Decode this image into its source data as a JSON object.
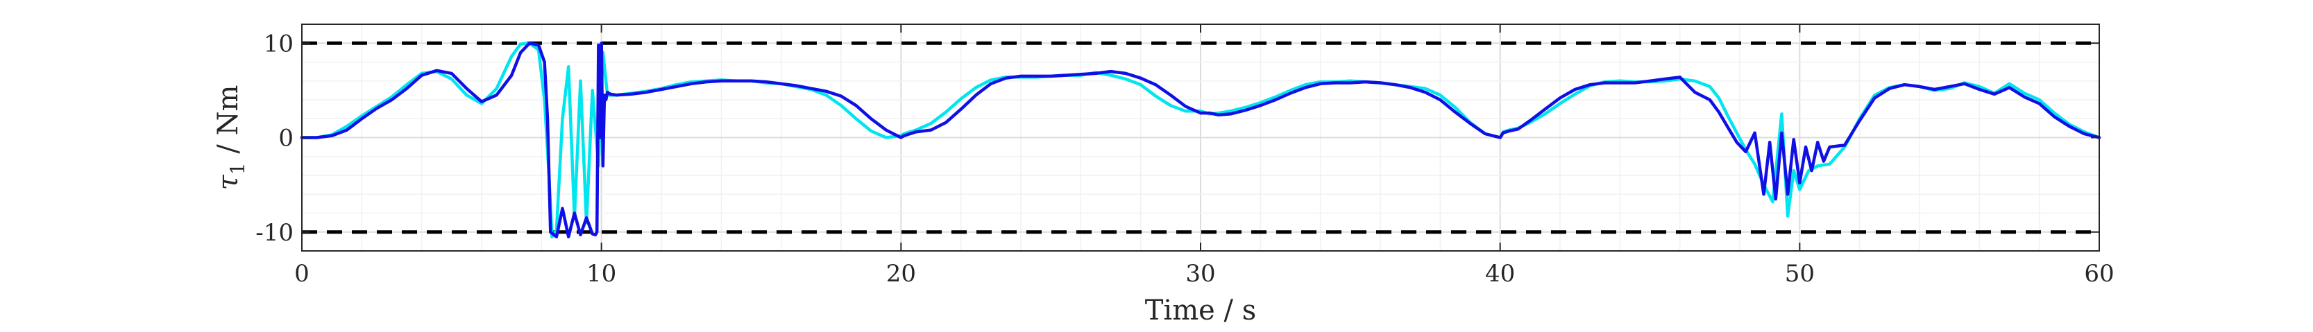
{
  "chart_data": {
    "type": "line",
    "xlabel": "Time / s",
    "ylabel": "τ1 / Nm",
    "ylabel_main": "τ",
    "ylabel_sub": "1",
    "ylabel_unit": " / Nm",
    "xlim": [
      0,
      60
    ],
    "ylim": [
      -12,
      12
    ],
    "xticks": [
      0,
      10,
      20,
      30,
      40,
      50,
      60
    ],
    "yticks": [
      -10,
      0,
      10
    ],
    "grid": true,
    "limits": [
      10,
      -10
    ],
    "colors": {
      "reference": "#00e5ee",
      "actual": "#1010e6",
      "limit": "#000000",
      "grid": "#e6e6e6",
      "axes": "#262626"
    },
    "series": [
      {
        "color": "#00e5ee",
        "x": [
          0,
          0.5,
          1,
          1.5,
          2,
          2.5,
          3,
          3.5,
          4,
          4.5,
          5,
          5.5,
          6,
          6.5,
          7,
          7.3,
          7.6,
          7.9,
          8.1,
          8.25,
          8.35,
          8.5,
          8.7,
          8.9,
          9.1,
          9.3,
          9.5,
          9.7,
          9.9,
          10.05,
          10.2,
          10.5,
          11,
          11.5,
          12,
          12.5,
          13,
          13.5,
          14,
          14.5,
          15,
          15.5,
          16,
          16.5,
          17,
          17.5,
          18,
          18.5,
          19,
          19.5,
          20,
          20.1,
          20.3,
          20.5,
          21,
          21.5,
          22,
          22.5,
          23,
          23.5,
          24,
          24.5,
          25,
          25.5,
          26,
          26.5,
          27,
          27.5,
          28,
          28.5,
          29,
          29.5,
          30,
          30.3,
          30.6,
          31,
          31.5,
          32,
          32.5,
          33,
          33.5,
          34,
          34.5,
          35,
          35.5,
          36,
          36.5,
          37,
          37.5,
          38,
          38.5,
          39,
          39.5,
          40,
          40.1,
          40.3,
          40.6,
          41,
          41.5,
          42,
          42.5,
          43,
          43.5,
          44,
          44.5,
          45,
          45.5,
          46,
          46.5,
          47,
          47.3,
          47.6,
          47.9,
          48.2,
          48.5,
          48.8,
          49.1,
          49.4,
          49.6,
          49.8,
          50,
          50.3,
          50.6,
          51,
          51.5,
          52,
          52.5,
          53,
          53.5,
          54,
          54.5,
          55,
          55.5,
          56,
          56.5,
          57,
          57.5,
          58,
          58.5,
          59,
          59.5,
          60
        ],
        "y": [
          0,
          0,
          0.3,
          1.2,
          2.3,
          3.3,
          4.3,
          5.6,
          6.8,
          7,
          6.2,
          4.5,
          3.6,
          5.2,
          8.6,
          9.9,
          10,
          9.3,
          4,
          -4,
          -10.5,
          -9.8,
          2,
          7.5,
          -8.5,
          6,
          -9,
          5,
          -3,
          9,
          4.5,
          4.5,
          4.7,
          4.9,
          5.2,
          5.6,
          5.9,
          6,
          6.1,
          6,
          6,
          5.8,
          5.7,
          5.4,
          5.1,
          4.5,
          3.4,
          2,
          0.7,
          0,
          0.2,
          0.4,
          0.6,
          0.8,
          1.5,
          2.7,
          4.1,
          5.3,
          6.1,
          6.4,
          6.4,
          6.4,
          6.5,
          6.6,
          6.6,
          6.9,
          6.6,
          6.2,
          5.6,
          4.4,
          3.4,
          2.8,
          2.8,
          2.5,
          2.6,
          2.8,
          3.2,
          3.7,
          4.3,
          5,
          5.6,
          5.9,
          5.9,
          6,
          5.9,
          5.8,
          5.6,
          5.4,
          5.2,
          4.5,
          3.2,
          1.6,
          0.4,
          0,
          0.6,
          0.8,
          1,
          1.6,
          2.5,
          3.6,
          4.6,
          5.5,
          5.9,
          6,
          5.9,
          5.9,
          6,
          6.2,
          6,
          5.4,
          4.2,
          2.3,
          0.5,
          -1.3,
          -2.8,
          -5,
          -6.8,
          2.5,
          -8.3,
          -3.5,
          -5.5,
          -3.5,
          -3,
          -2.8,
          -1,
          2,
          4.5,
          5.3,
          5.6,
          5.4,
          5,
          5.2,
          5.8,
          5.4,
          4.7,
          5.7,
          4.7,
          4,
          2.6,
          1.4,
          0.6,
          0
        ]
      },
      {
        "color": "#1010e6",
        "x": [
          0,
          0.5,
          1,
          1.5,
          2,
          2.5,
          3,
          3.5,
          4,
          4.5,
          5,
          5.5,
          6,
          6.5,
          7,
          7.3,
          7.6,
          7.9,
          8.1,
          8.2,
          8.3,
          8.5,
          8.7,
          8.9,
          9.1,
          9.3,
          9.5,
          9.7,
          9.8,
          9.85,
          9.9,
          9.95,
          10,
          10.05,
          10.1,
          10.15,
          10.2,
          10.3,
          10.5,
          11,
          11.5,
          12,
          12.5,
          13,
          13.5,
          14,
          14.5,
          15,
          15.5,
          16,
          16.5,
          17,
          17.5,
          18,
          18.5,
          19,
          19.5,
          20,
          20.1,
          20.3,
          20.5,
          21,
          21.5,
          22,
          22.5,
          23,
          23.5,
          24,
          24.5,
          25,
          25.5,
          26,
          26.5,
          27,
          27.5,
          28,
          28.5,
          29,
          29.5,
          30,
          30.3,
          30.6,
          31,
          31.5,
          32,
          32.5,
          33,
          33.5,
          34,
          34.5,
          35,
          35.5,
          36,
          36.5,
          37,
          37.5,
          38,
          38.5,
          39,
          39.5,
          40,
          40.1,
          40.3,
          40.6,
          41,
          41.5,
          42,
          42.5,
          43,
          43.5,
          44,
          44.5,
          45,
          45.5,
          46,
          46.5,
          47,
          47.3,
          47.6,
          47.9,
          48.2,
          48.5,
          48.8,
          49,
          49.2,
          49.4,
          49.6,
          49.8,
          50,
          50.2,
          50.4,
          50.6,
          50.8,
          51,
          51.5,
          52,
          52.5,
          53,
          53.5,
          54,
          54.5,
          55,
          55.5,
          56,
          56.5,
          57,
          57.5,
          58,
          58.5,
          59,
          59.5,
          60
        ],
        "y": [
          0,
          0,
          0.2,
          0.8,
          2,
          3.1,
          4,
          5.2,
          6.6,
          7.1,
          6.8,
          5.2,
          3.8,
          4.5,
          6.6,
          9,
          10,
          9.8,
          8,
          2,
          -10,
          -10.5,
          -7.5,
          -10.5,
          -8,
          -10.3,
          -8.5,
          -10.2,
          -10.3,
          -10,
          9.8,
          0,
          10,
          -3,
          4.5,
          4,
          4.8,
          4.6,
          4.5,
          4.6,
          4.8,
          5.1,
          5.4,
          5.7,
          5.9,
          6,
          6,
          6,
          5.9,
          5.7,
          5.5,
          5.2,
          4.9,
          4.4,
          3.4,
          2,
          0.8,
          0,
          0.2,
          0.4,
          0.6,
          0.8,
          1.6,
          3,
          4.5,
          5.7,
          6.3,
          6.5,
          6.5,
          6.5,
          6.6,
          6.7,
          6.8,
          7,
          6.8,
          6.3,
          5.6,
          4.5,
          3.3,
          2.6,
          2.6,
          2.4,
          2.5,
          2.9,
          3.4,
          4,
          4.7,
          5.3,
          5.7,
          5.8,
          5.8,
          5.9,
          5.8,
          5.6,
          5.3,
          4.8,
          4,
          2.7,
          1.5,
          0.4,
          0,
          0.5,
          0.7,
          0.9,
          1.8,
          3,
          4.2,
          5.1,
          5.6,
          5.8,
          5.8,
          5.8,
          6,
          6.2,
          6.4,
          4.8,
          4,
          2.7,
          1.1,
          -0.5,
          -1.5,
          0.5,
          -6,
          -0.5,
          -6.5,
          0.5,
          -6,
          -0.2,
          -4.8,
          -1,
          -3.5,
          -0.5,
          -2.5,
          -1,
          -0.8,
          1.8,
          4.2,
          5.2,
          5.6,
          5.4,
          5.1,
          5.4,
          5.7,
          5.1,
          4.6,
          5.3,
          4.3,
          3.6,
          2.2,
          1.2,
          0.4,
          0
        ]
      }
    ]
  }
}
